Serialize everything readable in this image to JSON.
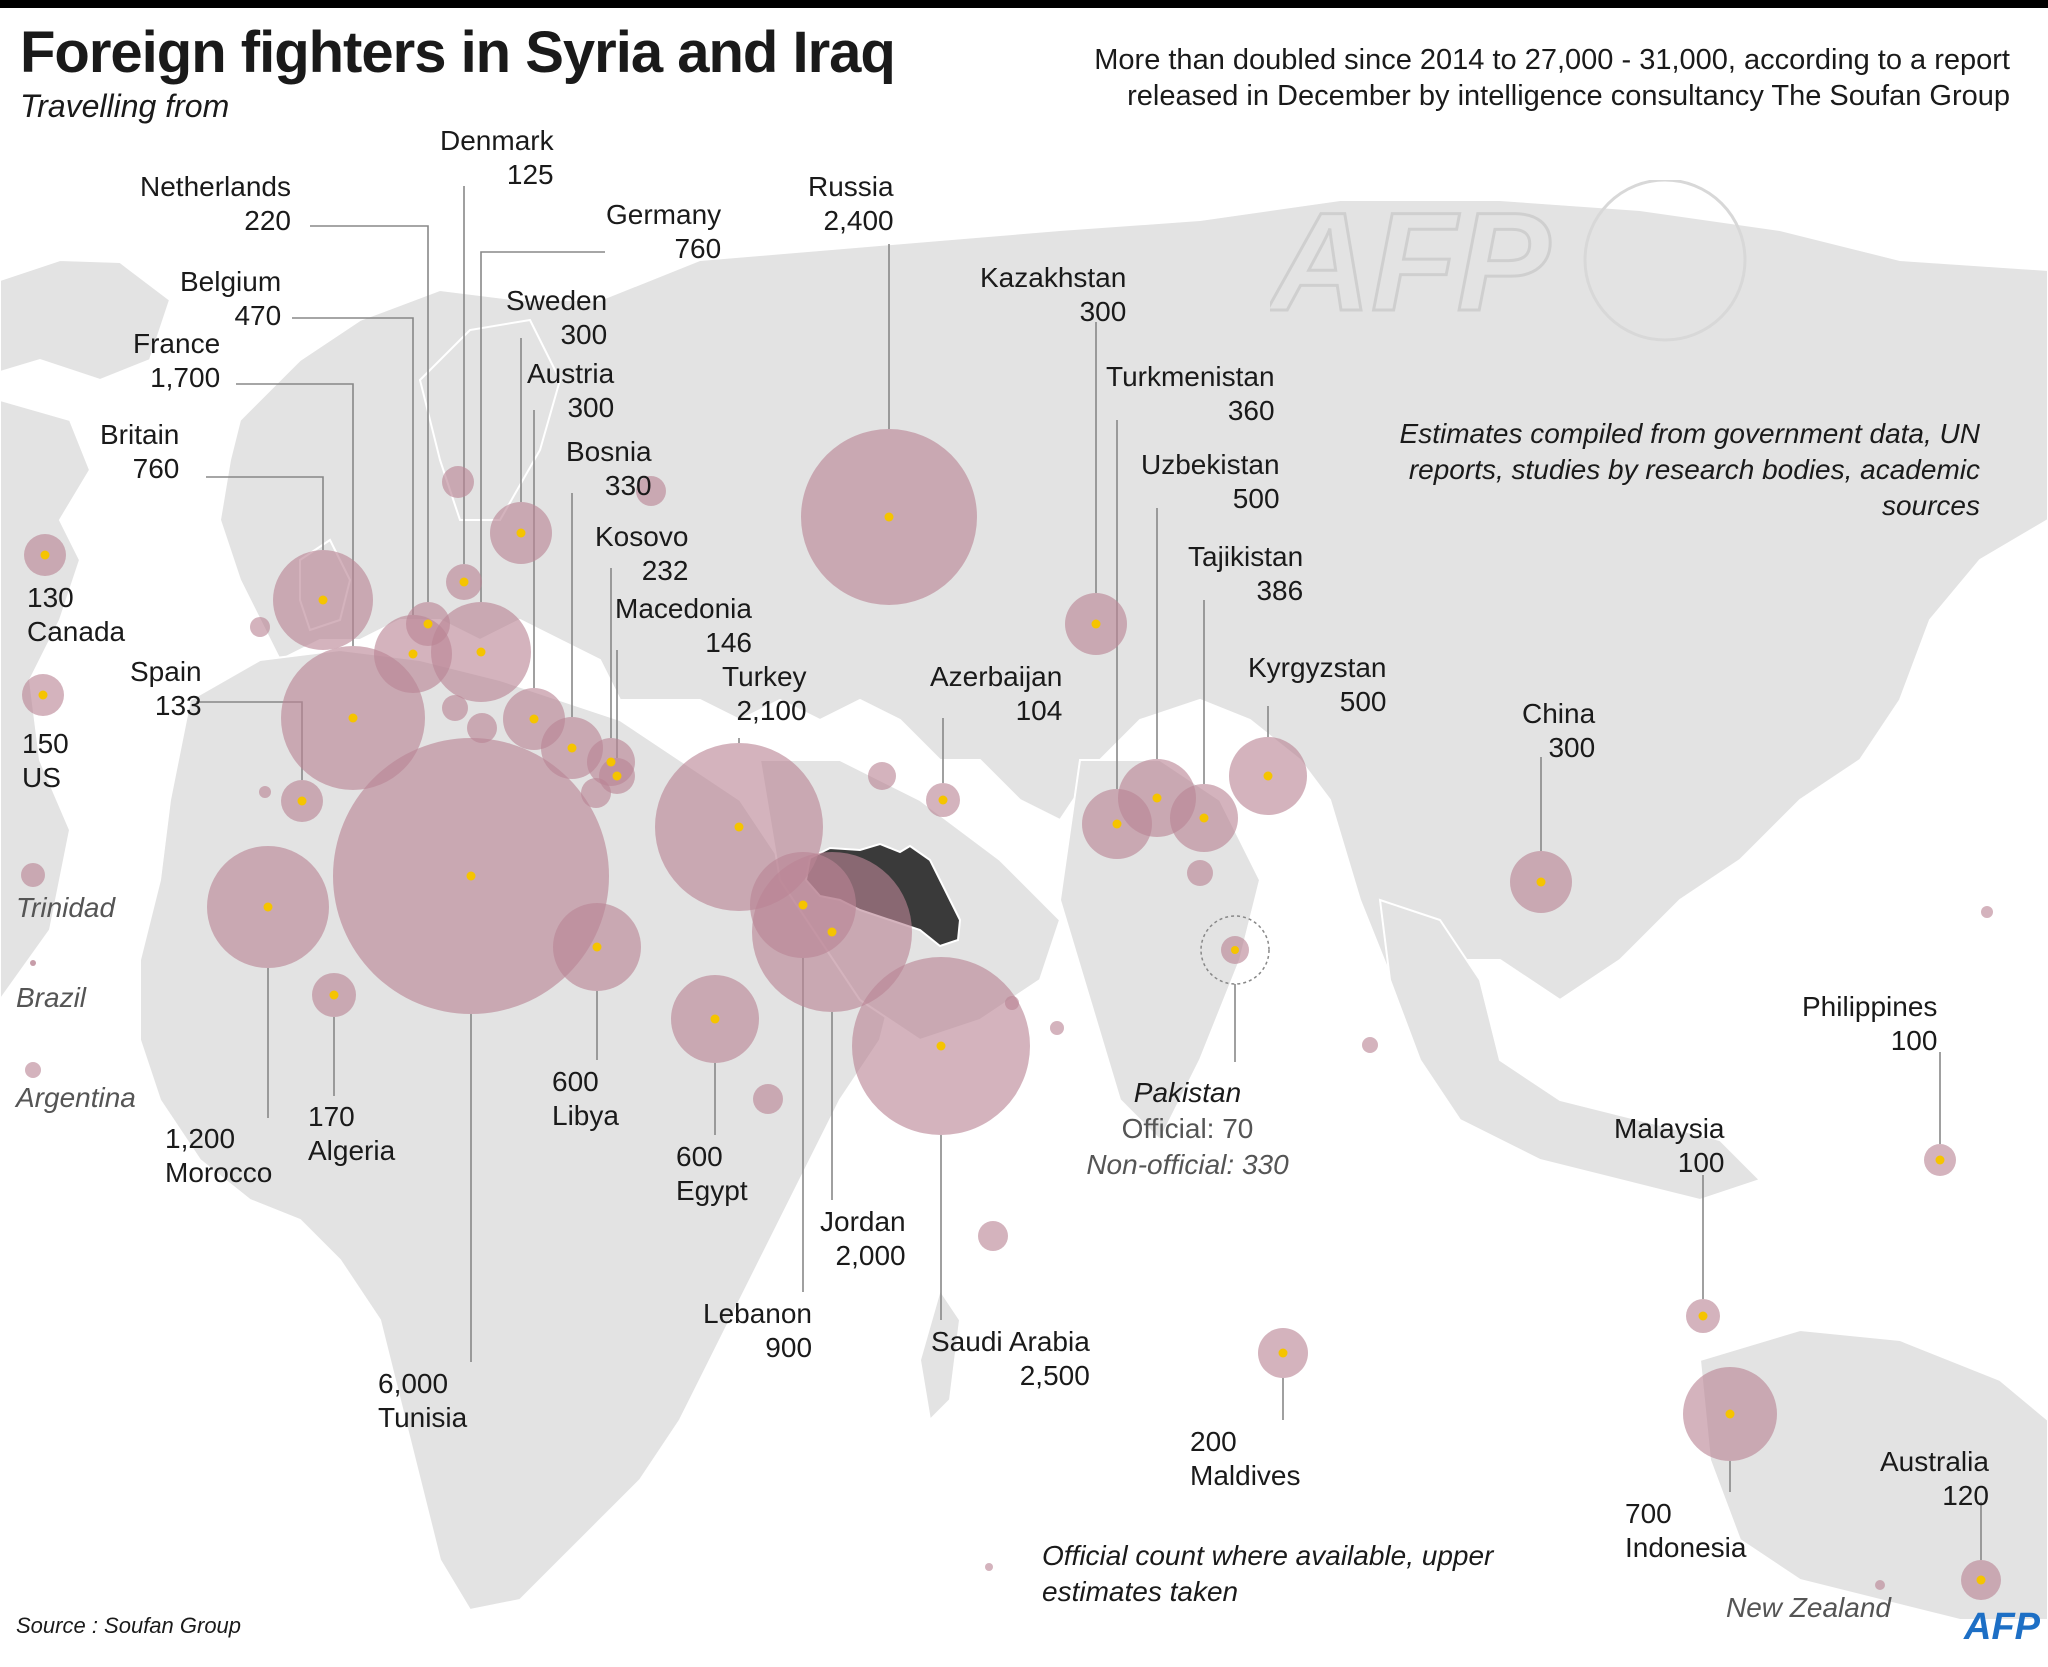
{
  "header": {
    "title": "Foreign fighters in Syria and Iraq",
    "subtitle": "Travelling from",
    "summary": "More than doubled since 2014 to 27,000 - 31,000, according to a report released in December by intelligence consultancy The Soufan Group"
  },
  "notes": {
    "method": "Estimates compiled from government data, UN reports, studies by research bodies, academic sources",
    "count": "Official count where available, upper estimates taken",
    "source": "Source : Soufan Group"
  },
  "brand": {
    "logo": "AFP",
    "logo_color": "#1d6fc5"
  },
  "colors": {
    "bubble": "#b98494",
    "dot": "#f5c400",
    "land": "#e3e3e3",
    "syria_iraq": "#3a3a3a",
    "leader": "#888888"
  },
  "countries": [
    {
      "name": "Denmark",
      "value": "125",
      "fighters": 125
    },
    {
      "name": "Netherlands",
      "value": "220",
      "fighters": 220
    },
    {
      "name": "Germany",
      "value": "760",
      "fighters": 760
    },
    {
      "name": "Belgium",
      "value": "470",
      "fighters": 470
    },
    {
      "name": "Sweden",
      "value": "300",
      "fighters": 300
    },
    {
      "name": "France",
      "value": "1,700",
      "fighters": 1700
    },
    {
      "name": "Austria",
      "value": "300",
      "fighters": 300
    },
    {
      "name": "Britain",
      "value": "760",
      "fighters": 760
    },
    {
      "name": "Bosnia",
      "value": "330",
      "fighters": 330
    },
    {
      "name": "Kosovo",
      "value": "232",
      "fighters": 232
    },
    {
      "name": "Macedonia",
      "value": "146",
      "fighters": 146
    },
    {
      "name": "Spain",
      "value": "133",
      "fighters": 133
    },
    {
      "name": "Canada",
      "value": "130",
      "fighters": 130
    },
    {
      "name": "US",
      "value": "150",
      "fighters": 150
    },
    {
      "name": "Russia",
      "value": "2,400",
      "fighters": 2400
    },
    {
      "name": "Turkey",
      "value": "2,100",
      "fighters": 2100
    },
    {
      "name": "Azerbaijan",
      "value": "104",
      "fighters": 104
    },
    {
      "name": "Kazakhstan",
      "value": "300",
      "fighters": 300
    },
    {
      "name": "Turkmenistan",
      "value": "360",
      "fighters": 360
    },
    {
      "name": "Uzbekistan",
      "value": "500",
      "fighters": 500
    },
    {
      "name": "Tajikistan",
      "value": "386",
      "fighters": 386
    },
    {
      "name": "Kyrgyzstan",
      "value": "500",
      "fighters": 500
    },
    {
      "name": "China",
      "value": "300",
      "fighters": 300
    },
    {
      "name": "Morocco",
      "value": "1,200",
      "fighters": 1200
    },
    {
      "name": "Algeria",
      "value": "170",
      "fighters": 170
    },
    {
      "name": "Tunisia",
      "value": "6,000",
      "fighters": 6000
    },
    {
      "name": "Libya",
      "value": "600",
      "fighters": 600
    },
    {
      "name": "Egypt",
      "value": "600",
      "fighters": 600
    },
    {
      "name": "Jordan",
      "value": "2,000",
      "fighters": 2000
    },
    {
      "name": "Lebanon",
      "value": "900",
      "fighters": 900
    },
    {
      "name": "Saudi Arabia",
      "value": "2,500",
      "fighters": 2500
    },
    {
      "name": "Maldives",
      "value": "200",
      "fighters": 200
    },
    {
      "name": "Philippines",
      "value": "100",
      "fighters": 100
    },
    {
      "name": "Malaysia",
      "value": "100",
      "fighters": 100
    },
    {
      "name": "Indonesia",
      "value": "700",
      "fighters": 700
    },
    {
      "name": "Australia",
      "value": "120",
      "fighters": 120
    }
  ],
  "pakistan": {
    "name": "Pakistan",
    "official": "Official: 70",
    "non_official": "Non-official: 330"
  },
  "unlabeled_small": [
    "Trinidad",
    "Brazil",
    "Argentina",
    "New Zealand"
  ]
}
